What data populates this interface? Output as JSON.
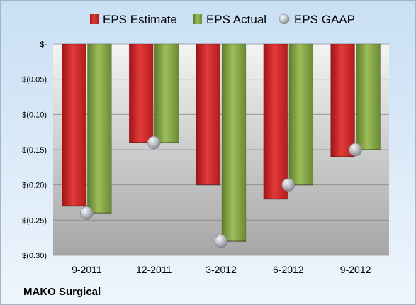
{
  "chart_data": {
    "type": "bar",
    "title": "",
    "xlabel": "",
    "ylabel": "",
    "categories": [
      "9-2011",
      "12-2011",
      "3-2012",
      "6-2012",
      "9-2012"
    ],
    "series": [
      {
        "name": "EPS Estimate",
        "kind": "bar",
        "color": "#d42c2c",
        "values": [
          -0.23,
          -0.14,
          -0.2,
          -0.22,
          -0.16
        ]
      },
      {
        "name": "EPS Actual",
        "kind": "bar",
        "color": "#8bab4a",
        "values": [
          -0.24,
          -0.14,
          -0.28,
          -0.2,
          -0.15
        ]
      },
      {
        "name": "EPS GAAP",
        "kind": "marker",
        "color": "#b8bcc4",
        "values": [
          -0.24,
          -0.14,
          -0.28,
          -0.2,
          -0.15
        ]
      }
    ],
    "ylim": [
      -0.3,
      0
    ],
    "ytick_values": [
      0,
      -0.05,
      -0.1,
      -0.15,
      -0.2,
      -0.25,
      -0.3
    ],
    "ytick_labels": [
      "$-",
      "$(0.05)",
      "$(0.10)",
      "$(0.15)",
      "$(0.20)",
      "$(0.25)",
      "$(0.30)"
    ],
    "grid": true,
    "legend_position": "top",
    "company": "MAKO Surgical"
  }
}
